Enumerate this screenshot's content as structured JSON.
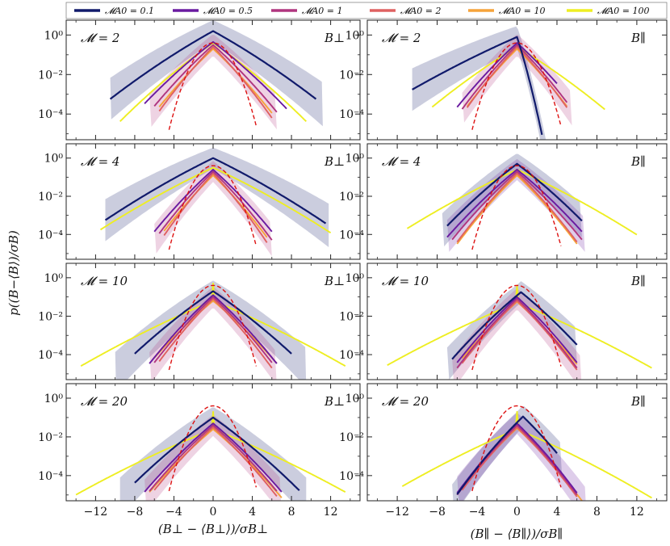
{
  "chart_data": {
    "type": "line",
    "title": "",
    "ylabel": "p((B−⟨B⟩)/σB)",
    "y_scale": "log",
    "ylim": [
      -5.3,
      0.75
    ],
    "xlim": [
      -15,
      15
    ],
    "x_ticks": [
      -12,
      -8,
      -4,
      0,
      4,
      8,
      12
    ],
    "y_tick_labels": [
      "10⁰",
      "10⁻²",
      "10⁻⁴"
    ],
    "y_tick_values": [
      0,
      -2,
      -4
    ],
    "xlabels": [
      "(B⊥ − ⟨B⊥⟩)/σB⊥",
      "(B∥ − ⟨B∥⟩)/σB∥"
    ],
    "component_labels": [
      "B⊥",
      "B∥"
    ],
    "mach_labels": [
      "𝓜 = 2",
      "𝓜 = 4",
      "𝓜 = 10",
      "𝓜 = 20"
    ],
    "legend": [
      {
        "label": "𝓜A0 = 0.1",
        "color": "#101a6b"
      },
      {
        "label": "𝓜A0 = 0.5",
        "color": "#6a1aa0"
      },
      {
        "label": "𝓜A0 = 1",
        "color": "#b0357f"
      },
      {
        "label": "𝓜A0 = 2",
        "color": "#df6161"
      },
      {
        "label": "𝓜A0 = 10",
        "color": "#f6a33a"
      },
      {
        "label": "𝓜A0 = 100",
        "color": "#eeee22"
      }
    ],
    "reference": {
      "label": "Gaussian",
      "color": "#dd1111",
      "style": "dashed"
    },
    "panels": [
      {
        "row": 0,
        "col": 0,
        "gauss_sigma": 0.85,
        "peak_shift": 0,
        "series": [
          {
            "name": "𝓜A0 = 0.1",
            "peak": 0.2,
            "scale": 2.0,
            "range": [
              -10.5,
              10.5
            ],
            "band": [
              -10.5,
              11.2
            ]
          },
          {
            "name": "𝓜A0 = 0.5",
            "peak": -0.35,
            "scale": 1.45,
            "range": [
              -7.0,
              7.5
            ]
          },
          {
            "name": "𝓜A0 = 1",
            "peak": -0.5,
            "scale": 1.25,
            "range": [
              -6.0,
              6.5
            ],
            "band": [
              -6.5,
              6.5
            ]
          },
          {
            "name": "𝓜A0 = 2",
            "peak": -0.6,
            "scale": 1.1,
            "range": [
              -5.5,
              6.0
            ]
          },
          {
            "name": "𝓜A0 = 10",
            "peak": -0.7,
            "scale": 1.2,
            "range": [
              -5.5,
              6.0
            ]
          },
          {
            "name": "𝓜A0 = 100",
            "peak": -0.4,
            "scale": 1.6,
            "range": [
              -9.5,
              9.5
            ]
          }
        ]
      },
      {
        "row": 0,
        "col": 1,
        "gauss_sigma": 0.85,
        "peak_shift": 0,
        "series": [
          {
            "name": "𝓜A0 = 0.1",
            "peak": -0.1,
            "scale": 2.5,
            "range": [
              -10.5,
              2.5
            ],
            "band": [
              -10.5,
              5.5
            ],
            "right_scale": 0.35
          },
          {
            "name": "𝓜A0 = 0.5",
            "peak": -0.4,
            "scale": 1.2,
            "range": [
              -6.0,
              4.0
            ]
          },
          {
            "name": "𝓜A0 = 1",
            "peak": -0.5,
            "scale": 1.1,
            "range": [
              -5.5,
              5.0
            ],
            "band": [
              -5.5,
              5.5
            ]
          },
          {
            "name": "𝓜A0 = 2",
            "peak": -0.6,
            "scale": 1.05,
            "range": [
              -5.0,
              5.0
            ]
          },
          {
            "name": "𝓜A0 = 10",
            "peak": -0.7,
            "scale": 1.1,
            "range": [
              -5.0,
              5.0
            ]
          },
          {
            "name": "𝓜A0 = 100",
            "peak": -0.6,
            "scale": 1.8,
            "range": [
              -8.5,
              8.8
            ]
          }
        ]
      },
      {
        "row": 1,
        "col": 0,
        "gauss_sigma": 0.85,
        "peak_shift": 0,
        "series": [
          {
            "name": "𝓜A0 = 0.1",
            "peak": 0.0,
            "scale": 2.2,
            "range": [
              -11.0,
              11.5
            ],
            "band": [
              -11.0,
              11.8
            ]
          },
          {
            "name": "𝓜A0 = 0.5",
            "peak": -0.6,
            "scale": 1.2,
            "range": [
              -6.0,
              6.0
            ]
          },
          {
            "name": "𝓜A0 = 1",
            "peak": -0.7,
            "scale": 1.1,
            "range": [
              -5.5,
              6.0
            ],
            "band": [
              -6.0,
              6.0
            ]
          },
          {
            "name": "𝓜A0 = 2",
            "peak": -0.8,
            "scale": 1.0,
            "range": [
              -5.0,
              5.5
            ]
          },
          {
            "name": "𝓜A0 = 10",
            "peak": -0.9,
            "scale": 1.1,
            "range": [
              -5.0,
              5.5
            ]
          },
          {
            "name": "𝓜A0 = 100",
            "peak": -0.5,
            "scale": 2.3,
            "range": [
              -11.5,
              12.0
            ]
          }
        ]
      },
      {
        "row": 1,
        "col": 1,
        "gauss_sigma": 0.85,
        "peak_shift": 0,
        "series": [
          {
            "name": "𝓜A0 = 0.1",
            "peak": -0.3,
            "scale": 1.4,
            "range": [
              -7.0,
              6.5
            ],
            "band": [
              -7.5,
              6.5
            ]
          },
          {
            "name": "𝓜A0 = 0.5",
            "peak": -0.6,
            "scale": 1.3,
            "range": [
              -7.0,
              6.5
            ],
            "band": [
              -7.0,
              6.8
            ]
          },
          {
            "name": "𝓜A0 = 1",
            "peak": -0.7,
            "scale": 1.2,
            "range": [
              -6.5,
              6.5
            ]
          },
          {
            "name": "𝓜A0 = 2",
            "peak": -0.8,
            "scale": 1.1,
            "range": [
              -6.0,
              6.0
            ]
          },
          {
            "name": "𝓜A0 = 10",
            "peak": -0.9,
            "scale": 1.1,
            "range": [
              -6.0,
              6.0
            ]
          },
          {
            "name": "𝓜A0 = 100",
            "peak": -0.6,
            "scale": 2.3,
            "range": [
              -11.0,
              12.0
            ]
          }
        ]
      },
      {
        "row": 2,
        "col": 0,
        "gauss_sigma": 0.85,
        "peak_shift": 0,
        "series": [
          {
            "name": "𝓜A0 = 0.1",
            "peak": -0.7,
            "scale": 1.6,
            "range": [
              -8.0,
              8.0
            ],
            "band": [
              -10.0,
              9.5
            ]
          },
          {
            "name": "𝓜A0 = 0.5",
            "peak": -0.9,
            "scale": 1.2,
            "range": [
              -6.5,
              6.5
            ]
          },
          {
            "name": "𝓜A0 = 1",
            "peak": -1.0,
            "scale": 1.15,
            "range": [
              -6.0,
              6.0
            ],
            "band": [
              -6.5,
              6.5
            ]
          },
          {
            "name": "𝓜A0 = 2",
            "peak": -1.1,
            "scale": 1.1,
            "range": [
              -5.5,
              6.0
            ]
          },
          {
            "name": "𝓜A0 = 10",
            "peak": -1.2,
            "scale": 1.3,
            "range": [
              -6.0,
              6.5
            ]
          },
          {
            "name": "𝓜A0 = 100",
            "peak": -1.2,
            "scale": 2.6,
            "range": [
              -13.5,
              13.5
            ],
            "spike": -0.3
          }
        ]
      },
      {
        "row": 2,
        "col": 1,
        "gauss_sigma": 0.85,
        "peak_shift": 0,
        "series": [
          {
            "name": "𝓜A0 = 0.1",
            "peak": -0.75,
            "scale": 1.3,
            "range": [
              -6.5,
              6.0
            ],
            "band": [
              -7.0,
              6.0
            ],
            "shift": 0.4
          },
          {
            "name": "𝓜A0 = 0.5",
            "peak": -1.0,
            "scale": 1.15,
            "range": [
              -6.0,
              6.0
            ]
          },
          {
            "name": "𝓜A0 = 1",
            "peak": -1.1,
            "scale": 1.1,
            "range": [
              -6.0,
              6.0
            ],
            "band": [
              -6.5,
              6.5
            ]
          },
          {
            "name": "𝓜A0 = 2",
            "peak": -1.2,
            "scale": 1.1,
            "range": [
              -5.5,
              6.0
            ]
          },
          {
            "name": "𝓜A0 = 10",
            "peak": -1.25,
            "scale": 1.2,
            "range": [
              -5.5,
              6.0
            ]
          },
          {
            "name": "𝓜A0 = 100",
            "peak": -1.3,
            "scale": 2.6,
            "range": [
              -13.0,
              13.5
            ],
            "spike": -0.35
          }
        ]
      },
      {
        "row": 3,
        "col": 0,
        "gauss_sigma": 0.85,
        "peak_shift": 0,
        "series": [
          {
            "name": "𝓜A0 = 0.1",
            "peak": -1.0,
            "scale": 1.55,
            "range": [
              -8.0,
              8.8
            ],
            "band": [
              -9.5,
              9.5
            ]
          },
          {
            "name": "𝓜A0 = 0.5",
            "peak": -1.3,
            "scale": 1.3,
            "range": [
              -7.0,
              7.0
            ]
          },
          {
            "name": "𝓜A0 = 1",
            "peak": -1.4,
            "scale": 1.25,
            "range": [
              -6.5,
              6.5
            ],
            "band": [
              -7.0,
              7.0
            ]
          },
          {
            "name": "𝓜A0 = 2",
            "peak": -1.5,
            "scale": 1.2,
            "range": [
              -6.0,
              6.5
            ]
          },
          {
            "name": "𝓜A0 = 10",
            "peak": -1.6,
            "scale": 1.3,
            "range": [
              -6.5,
              7.0
            ]
          },
          {
            "name": "𝓜A0 = 100",
            "peak": -1.6,
            "scale": 2.7,
            "range": [
              -14.0,
              13.5
            ],
            "spike": -0.8
          }
        ]
      },
      {
        "row": 3,
        "col": 1,
        "gauss_sigma": 0.85,
        "peak_shift": 0,
        "series": [
          {
            "name": "𝓜A0 = 0.1",
            "peak": -0.95,
            "scale": 1.1,
            "range": [
              -6.0,
              4.0
            ],
            "band": [
              -6.5,
              4.5
            ],
            "shift": 0.6
          },
          {
            "name": "𝓜A0 = 0.5",
            "peak": -1.3,
            "scale": 1.1,
            "range": [
              -6.0,
              6.0
            ],
            "band": [
              -6.0,
              7.0
            ]
          },
          {
            "name": "𝓜A0 = 1",
            "peak": -1.4,
            "scale": 1.1,
            "range": [
              -6.0,
              6.0
            ]
          },
          {
            "name": "𝓜A0 = 2",
            "peak": -1.5,
            "scale": 1.1,
            "range": [
              -5.5,
              6.0
            ]
          },
          {
            "name": "𝓜A0 = 10",
            "peak": -1.55,
            "scale": 1.15,
            "range": [
              -5.5,
              6.5
            ]
          },
          {
            "name": "𝓜A0 = 100",
            "peak": -1.6,
            "scale": 2.5,
            "range": [
              -11.5,
              13.5
            ],
            "spike": -0.7
          }
        ]
      }
    ]
  }
}
